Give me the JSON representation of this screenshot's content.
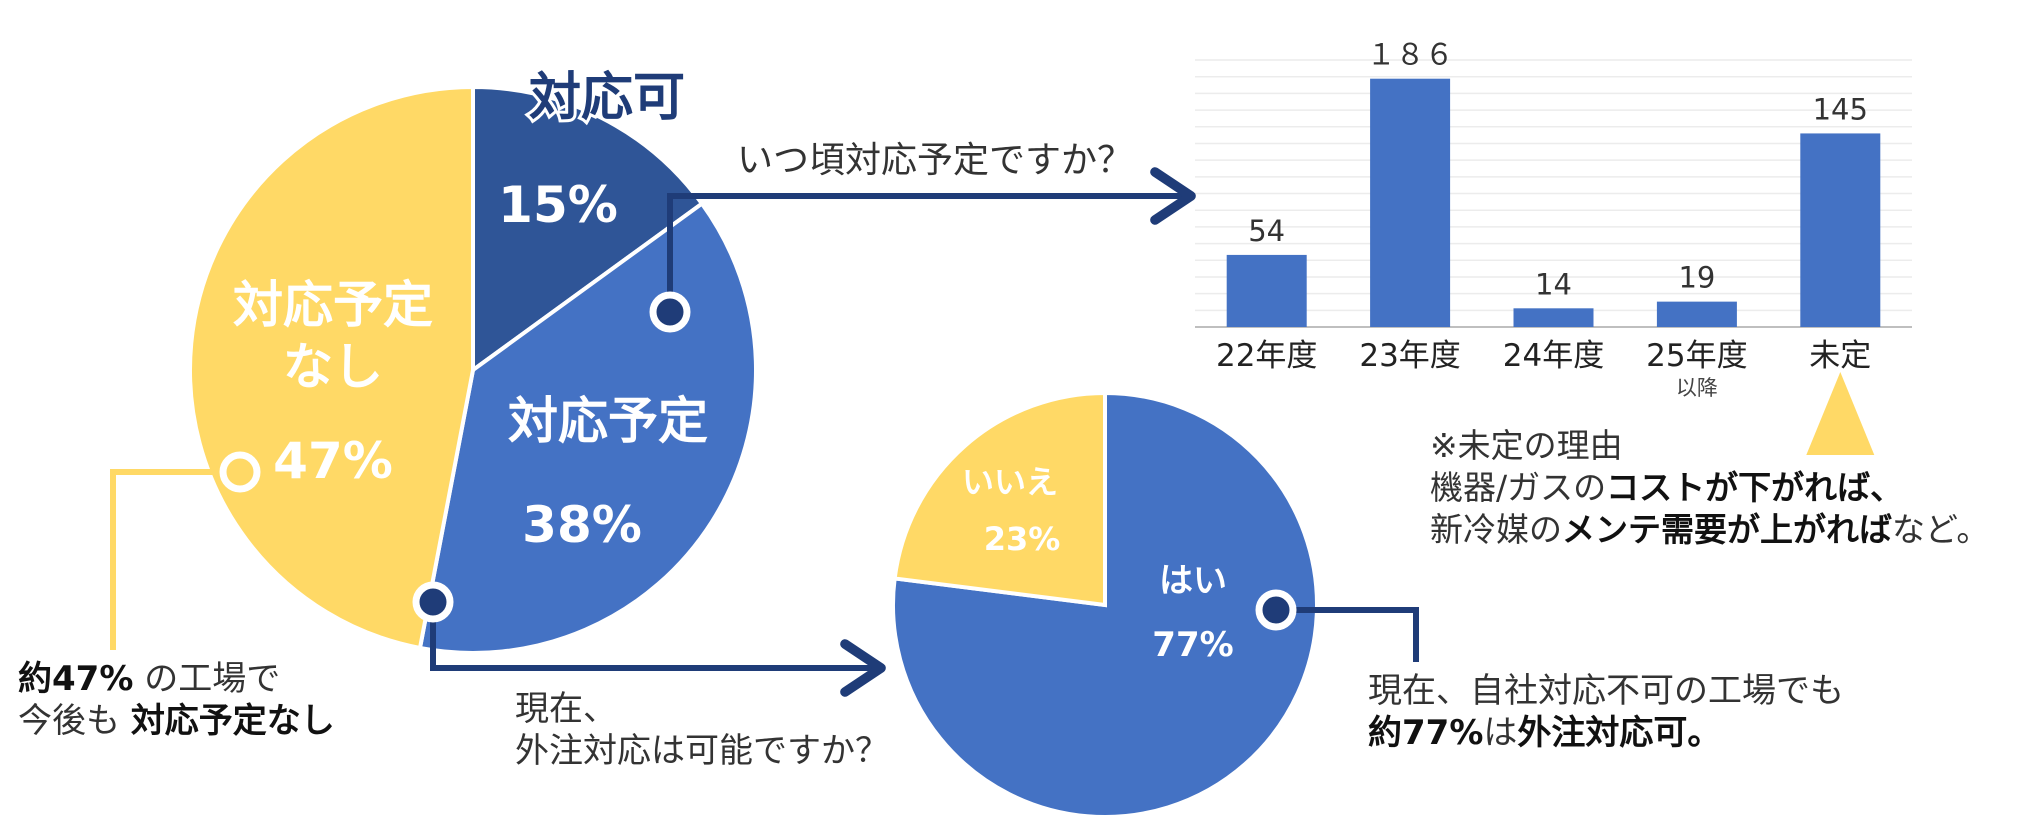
{
  "colors": {
    "dark_blue": "#2F5597",
    "blue": "#4472C4",
    "yellow": "#FFD966",
    "navy_text": "#1F3C78",
    "arrow": "#1F3C78"
  },
  "chart_data": [
    {
      "type": "pie",
      "slices": [
        {
          "label": "対応可",
          "value": 15,
          "display": "15%"
        },
        {
          "label": "対応予定",
          "value": 38,
          "display": "38%"
        },
        {
          "label": "対応予定\nなし",
          "value": 47,
          "display": "47%"
        }
      ]
    },
    {
      "type": "bar",
      "question": "いつ頃対応予定ですか？",
      "categories": [
        "22年度",
        "23年度",
        "24年度",
        "25年度",
        "未定"
      ],
      "category_sublabels": [
        "",
        "",
        "",
        "以降",
        ""
      ],
      "values": [
        54,
        186,
        14,
        19,
        145
      ],
      "value_labels": [
        "54",
        "１８６",
        "14",
        "19",
        "145"
      ],
      "ylim": [
        0,
        200
      ],
      "grid": true
    },
    {
      "type": "pie",
      "question": "現在、\n外注対応は可能ですか？",
      "slices": [
        {
          "label": "はい",
          "value": 77,
          "display": "77%"
        },
        {
          "label": "いいえ",
          "value": 23,
          "display": "23%"
        }
      ]
    }
  ],
  "notes": {
    "left_line1_bold": "約47%",
    "left_line1_rest": " の工場で",
    "left_line2_plain": "今後も ",
    "left_line2_bold": "対応予定なし",
    "undecided_title": "※未定の理由",
    "undecided_l2_plain": "機器/ガスの",
    "undecided_l2_bold": "コストが下がれば、",
    "undecided_l3_plain1": "新冷媒の",
    "undecided_l3_bold": "メンテ需要が上がれば",
    "undecided_l3_plain2": "など。",
    "outsource_line1": "現在、自社対応不可の工場でも",
    "outsource_l2_bold1": "約77%",
    "outsource_l2_plain": "は",
    "outsource_l2_bold2": "外注対応可。"
  }
}
